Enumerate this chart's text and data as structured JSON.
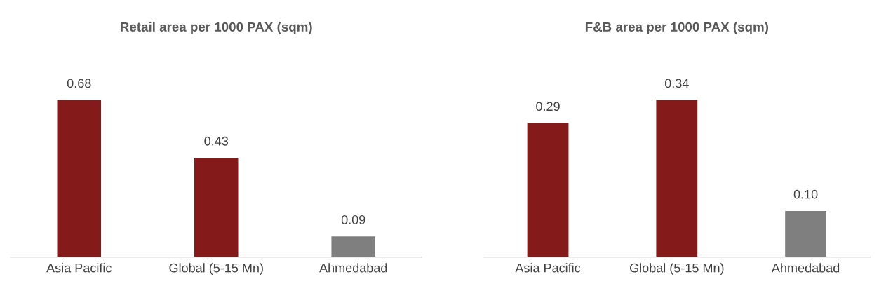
{
  "chart_data": [
    {
      "type": "bar",
      "title": "Retail area per 1000 PAX (sqm)",
      "categories": [
        "Asia Pacific",
        "Global (5-15 Mn)",
        "Ahmedabad"
      ],
      "values": [
        0.68,
        0.43,
        0.09
      ],
      "value_labels": [
        "0.68",
        "0.43",
        "0.09"
      ],
      "colors": [
        "#841a1a",
        "#841a1a",
        "#7f7f7f"
      ],
      "tick_labels": "x"
    },
    {
      "type": "bar",
      "title": "F&B area per 1000 PAX (sqm)",
      "categories": [
        "Asia Pacific",
        "Global (5-15 Mn)",
        "Ahmedabad"
      ],
      "values": [
        0.29,
        0.34,
        0.1
      ],
      "value_labels": [
        "0.29",
        "0.34",
        "0.10"
      ],
      "colors": [
        "#841a1a",
        "#841a1a",
        "#7f7f7f"
      ],
      "tick_labels": "x"
    }
  ]
}
